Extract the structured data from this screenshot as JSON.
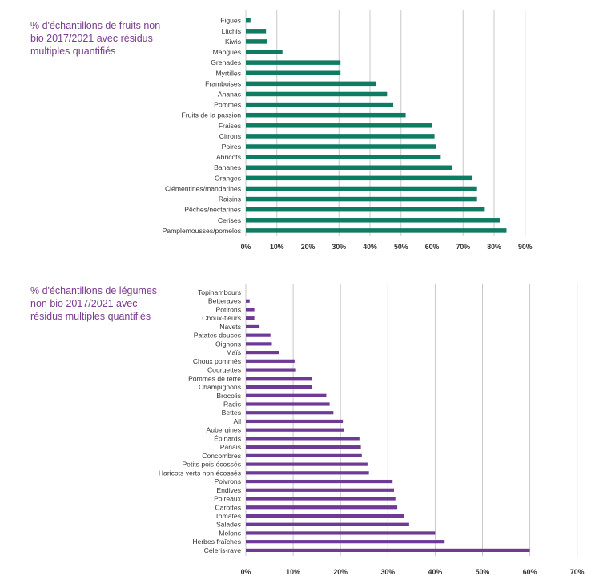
{
  "chart_data": [
    {
      "type": "bar",
      "orientation": "horizontal",
      "title": "% d'échantillons de fruits non bio 2017/2021 avec résidus multiples quantifiés",
      "color": "#0e7b63",
      "grid": true,
      "xlim": [
        0,
        90
      ],
      "xticks": [
        "0%",
        "10%",
        "20%",
        "30%",
        "40%",
        "50%",
        "60%",
        "70%",
        "80%",
        "90%"
      ],
      "categories": [
        "Figues",
        "Litchis",
        "Kiwis",
        "Mangues",
        "Grenades",
        "Myrtilles",
        "Framboises",
        "Ananas",
        "Pommes",
        "Fruits de la passion",
        "Fraises",
        "Citrons",
        "Poires",
        "Abricots",
        "Bananes",
        "Oranges",
        "Clémentines/mandarines",
        "Raisins",
        "Pêches/nectarines",
        "Cerises",
        "Pamplemousses/pomelos"
      ],
      "values": [
        1.5,
        6.5,
        6.8,
        11.8,
        30.5,
        30.5,
        42,
        45.5,
        47.5,
        51.5,
        60,
        60.8,
        61.2,
        62.8,
        66.5,
        73,
        74.5,
        74.5,
        77,
        81.8,
        84
      ]
    },
    {
      "type": "bar",
      "orientation": "horizontal",
      "title": "% d'échantillons de légumes non bio 2017/2021 avec résidus multiples quantifiés",
      "color": "#6f3a96",
      "grid": true,
      "xlim": [
        0,
        70
      ],
      "xticks": [
        "0%",
        "10%",
        "20%",
        "30%",
        "40%",
        "50%",
        "60%",
        "70%"
      ],
      "categories": [
        "Topinambours",
        "Betteraves",
        "Potirons",
        "Choux-fleurs",
        "Navets",
        "Patates douces",
        "Oignons",
        "Maïs",
        "Choux pommés",
        "Courgettes",
        "Pommes de terre",
        "Champignons",
        "Brocolis",
        "Radis",
        "Bettes",
        "Ail",
        "Aubergines",
        "Épinards",
        "Panais",
        "Concombres",
        "Petits pois écossés",
        "Haricots verts non écossés",
        "Poivrons",
        "Endives",
        "Poireaux",
        "Carottes",
        "Tomates",
        "Salades",
        "Melons",
        "Herbes fraîches",
        "Céleris-rave"
      ],
      "values": [
        0,
        0.8,
        1.8,
        1.8,
        2.9,
        5.2,
        5.5,
        7,
        10.3,
        10.6,
        14,
        14,
        17,
        17.7,
        18.5,
        20.5,
        20.8,
        24,
        24.3,
        24.5,
        25.7,
        26,
        31,
        31.3,
        31.6,
        32,
        33.5,
        34.5,
        40,
        42,
        60
      ]
    }
  ]
}
